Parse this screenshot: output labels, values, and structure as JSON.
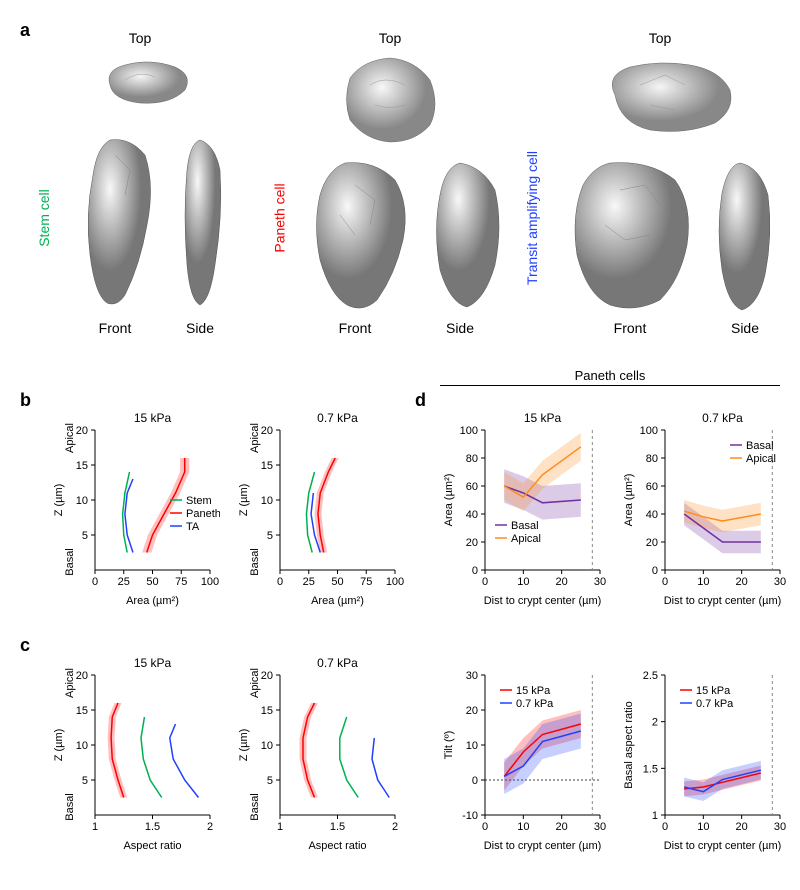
{
  "panelA": {
    "label": "a",
    "cells": [
      {
        "name": "Stem cell",
        "color": "#00b050",
        "views": [
          "Top",
          "Front",
          "Side"
        ]
      },
      {
        "name": "Paneth cell",
        "color": "#ff0000",
        "views": [
          "Top",
          "Front",
          "Side"
        ]
      },
      {
        "name": "Transit amplifying cell",
        "color": "#2040ff",
        "views": [
          "Top",
          "Front",
          "Side"
        ]
      }
    ]
  },
  "panelB": {
    "label": "b",
    "charts": [
      {
        "title": "15 kPa",
        "xlabel": "Area (µm²)",
        "ylabel": "Z (µm)",
        "xlim": [
          0,
          100
        ],
        "ylim": [
          0,
          20
        ],
        "xticks": [
          0,
          25,
          50,
          75,
          100
        ],
        "yticks": [
          5,
          10,
          15,
          20
        ],
        "ytop": "Apical",
        "ybot": "Basal",
        "series": [
          {
            "name": "Stem",
            "color": "#00b050",
            "points": [
              [
                28,
                2.5
              ],
              [
                25,
                5
              ],
              [
                24,
                8
              ],
              [
                26,
                11
              ],
              [
                30,
                14
              ]
            ]
          },
          {
            "name": "Paneth",
            "color": "#ff0000",
            "points": [
              [
                45,
                2.5
              ],
              [
                50,
                5
              ],
              [
                60,
                8
              ],
              [
                70,
                11
              ],
              [
                78,
                14
              ],
              [
                78,
                16
              ]
            ],
            "band": 4
          },
          {
            "name": "TA",
            "color": "#2040ff",
            "points": [
              [
                33,
                2.5
              ],
              [
                28,
                5
              ],
              [
                26,
                8
              ],
              [
                28,
                11
              ],
              [
                33,
                13
              ]
            ]
          }
        ],
        "legend": [
          {
            "label": "Stem",
            "color": "#00b050"
          },
          {
            "label": "Paneth",
            "color": "#ff0000"
          },
          {
            "label": "TA",
            "color": "#2040ff"
          }
        ]
      },
      {
        "title": "0.7 kPa",
        "xlabel": "Area (µm²)",
        "ylabel": "Z (µm)",
        "xlim": [
          0,
          100
        ],
        "ylim": [
          0,
          20
        ],
        "xticks": [
          0,
          25,
          50,
          75,
          100
        ],
        "yticks": [
          5,
          10,
          15,
          20
        ],
        "ytop": "Apical",
        "ybot": "Basal",
        "series": [
          {
            "name": "Stem",
            "color": "#00b050",
            "points": [
              [
                28,
                2.5
              ],
              [
                24,
                5
              ],
              [
                23,
                8
              ],
              [
                25,
                11
              ],
              [
                30,
                14
              ]
            ]
          },
          {
            "name": "Paneth",
            "color": "#ff0000",
            "points": [
              [
                38,
                2.5
              ],
              [
                35,
                5
              ],
              [
                33,
                8
              ],
              [
                35,
                11
              ],
              [
                42,
                14
              ],
              [
                48,
                16
              ]
            ],
            "band": 3
          },
          {
            "name": "TA",
            "color": "#2040ff",
            "points": [
              [
                35,
                2.5
              ],
              [
                30,
                5
              ],
              [
                27,
                8
              ],
              [
                29,
                11
              ]
            ]
          }
        ]
      }
    ]
  },
  "panelC": {
    "label": "c",
    "charts": [
      {
        "title": "15 kPa",
        "xlabel": "Aspect ratio",
        "ylabel": "Z (µm)",
        "xlim": [
          1.0,
          2.0
        ],
        "ylim": [
          0,
          20
        ],
        "xticks": [
          1.0,
          1.5,
          2.0
        ],
        "yticks": [
          5,
          10,
          15,
          20
        ],
        "ytop": "Apical",
        "ybot": "Basal",
        "series": [
          {
            "name": "Paneth",
            "color": "#ff0000",
            "points": [
              [
                1.25,
                2.5
              ],
              [
                1.2,
                5
              ],
              [
                1.15,
                8
              ],
              [
                1.14,
                11
              ],
              [
                1.15,
                14
              ],
              [
                1.2,
                16
              ]
            ],
            "band": 0.03
          },
          {
            "name": "Stem",
            "color": "#00b050",
            "points": [
              [
                1.58,
                2.5
              ],
              [
                1.48,
                5
              ],
              [
                1.42,
                8
              ],
              [
                1.4,
                11
              ],
              [
                1.43,
                14
              ]
            ]
          },
          {
            "name": "TA",
            "color": "#2040ff",
            "points": [
              [
                1.9,
                2.5
              ],
              [
                1.78,
                5
              ],
              [
                1.68,
                8
              ],
              [
                1.65,
                11
              ],
              [
                1.7,
                13
              ]
            ]
          }
        ]
      },
      {
        "title": "0.7 kPa",
        "xlabel": "Aspect ratio",
        "ylabel": "Z (µm)",
        "xlim": [
          1.0,
          2.0
        ],
        "ylim": [
          0,
          20
        ],
        "xticks": [
          1.0,
          1.5,
          2.0
        ],
        "yticks": [
          5,
          10,
          15,
          20
        ],
        "ytop": "Apical",
        "ybot": "Basal",
        "series": [
          {
            "name": "Paneth",
            "color": "#ff0000",
            "points": [
              [
                1.3,
                2.5
              ],
              [
                1.24,
                5
              ],
              [
                1.2,
                8
              ],
              [
                1.2,
                11
              ],
              [
                1.24,
                14
              ],
              [
                1.3,
                16
              ]
            ],
            "band": 0.03
          },
          {
            "name": "Stem",
            "color": "#00b050",
            "points": [
              [
                1.68,
                2.5
              ],
              [
                1.58,
                5
              ],
              [
                1.52,
                8
              ],
              [
                1.52,
                11
              ],
              [
                1.58,
                14
              ]
            ]
          },
          {
            "name": "TA",
            "color": "#2040ff",
            "points": [
              [
                1.95,
                2.5
              ],
              [
                1.85,
                5
              ],
              [
                1.8,
                8
              ],
              [
                1.82,
                11
              ]
            ]
          }
        ]
      }
    ]
  },
  "panelD": {
    "label": "d",
    "header": "Paneth cells",
    "charts": [
      {
        "title": "15 kPa",
        "xlabel": "Dist to crypt center (µm)",
        "ylabel": "Area (µm²)",
        "xlim": [
          0,
          30
        ],
        "ylim": [
          0,
          100
        ],
        "xticks": [
          0,
          10,
          20,
          30
        ],
        "yticks": [
          0,
          20,
          40,
          60,
          80,
          100
        ],
        "vdash": 28,
        "series": [
          {
            "name": "Basal",
            "color": "#7030a0",
            "points": [
              [
                5,
                60
              ],
              [
                10,
                55
              ],
              [
                15,
                48
              ],
              [
                25,
                50
              ]
            ],
            "band": 12
          },
          {
            "name": "Apical",
            "color": "#ff8c1a",
            "points": [
              [
                5,
                60
              ],
              [
                10,
                52
              ],
              [
                15,
                68
              ],
              [
                25,
                88
              ]
            ],
            "band": 10
          }
        ],
        "legend": [
          {
            "label": "Basal",
            "color": "#7030a0"
          },
          {
            "label": "Apical",
            "color": "#ff8c1a"
          }
        ]
      },
      {
        "title": "0.7 kPa",
        "xlabel": "Dist to crypt center (µm)",
        "ylabel": "Area (µm²)",
        "xlim": [
          0,
          30
        ],
        "ylim": [
          0,
          100
        ],
        "xticks": [
          0,
          10,
          20,
          30
        ],
        "yticks": [
          0,
          20,
          40,
          60,
          80,
          100
        ],
        "vdash": 28,
        "series": [
          {
            "name": "Basal",
            "color": "#7030a0",
            "points": [
              [
                5,
                40
              ],
              [
                10,
                30
              ],
              [
                15,
                20
              ],
              [
                25,
                20
              ]
            ],
            "band": 8
          },
          {
            "name": "Apical",
            "color": "#ff8c1a",
            "points": [
              [
                5,
                42
              ],
              [
                10,
                38
              ],
              [
                15,
                35
              ],
              [
                25,
                40
              ]
            ],
            "band": 8
          }
        ],
        "legend": [
          {
            "label": "Basal",
            "color": "#7030a0"
          },
          {
            "label": "Apical",
            "color": "#ff8c1a"
          }
        ]
      },
      {
        "xlabel": "Dist to crypt center (µm)",
        "ylabel": "Tilt (º)",
        "xlim": [
          0,
          30
        ],
        "ylim": [
          -10,
          30
        ],
        "xticks": [
          0,
          10,
          20,
          30
        ],
        "yticks": [
          -10,
          0,
          10,
          20,
          30
        ],
        "vdash": 28,
        "hdash": 0,
        "series": [
          {
            "name": "15 kPa",
            "color": "#ff0000",
            "points": [
              [
                5,
                1
              ],
              [
                10,
                8
              ],
              [
                15,
                13
              ],
              [
                25,
                16
              ]
            ],
            "band": 4
          },
          {
            "name": "0.7 kPa",
            "color": "#2040ff",
            "points": [
              [
                5,
                1
              ],
              [
                10,
                4
              ],
              [
                15,
                11
              ],
              [
                25,
                14
              ]
            ],
            "band": 5
          }
        ],
        "legend": [
          {
            "label": "15 kPa",
            "color": "#ff0000"
          },
          {
            "label": "0.7 kPa",
            "color": "#2040ff"
          }
        ]
      },
      {
        "xlabel": "Dist to crypt center (µm)",
        "ylabel": "Basal aspect ratio",
        "xlim": [
          0,
          30
        ],
        "ylim": [
          1.0,
          2.5
        ],
        "xticks": [
          0,
          10,
          20,
          30
        ],
        "yticks": [
          1.0,
          1.5,
          2.0,
          2.5
        ],
        "vdash": 28,
        "series": [
          {
            "name": "15 kPa",
            "color": "#ff0000",
            "points": [
              [
                5,
                1.28
              ],
              [
                10,
                1.3
              ],
              [
                15,
                1.35
              ],
              [
                25,
                1.45
              ]
            ],
            "band": 0.08
          },
          {
            "name": "0.7 kPa",
            "color": "#2040ff",
            "points": [
              [
                5,
                1.3
              ],
              [
                10,
                1.25
              ],
              [
                15,
                1.38
              ],
              [
                25,
                1.48
              ]
            ],
            "band": 0.1
          }
        ],
        "legend": [
          {
            "label": "15 kPa",
            "color": "#ff0000"
          },
          {
            "label": "0.7 kPa",
            "color": "#2040ff"
          }
        ]
      }
    ]
  },
  "style": {
    "background": "#ffffff",
    "axis_fontsize": 11,
    "title_fontsize": 12,
    "line_width": 1.5,
    "band_opacity": 0.25
  }
}
